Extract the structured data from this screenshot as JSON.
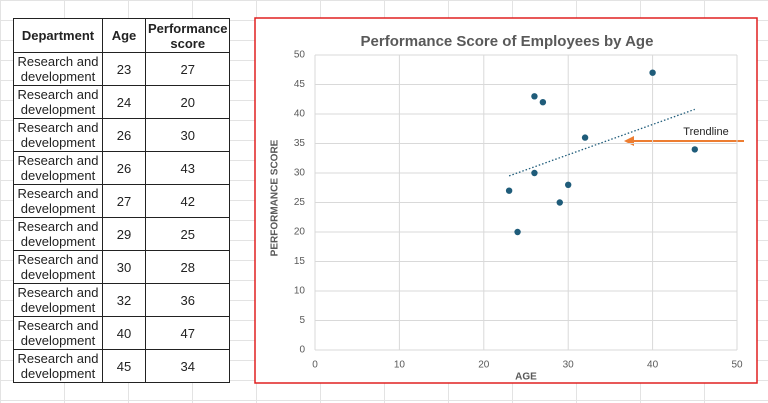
{
  "table": {
    "header": [
      "Department",
      "Age",
      "Performance score"
    ],
    "rows": [
      [
        "Research and development",
        23,
        27
      ],
      [
        "Research and development",
        24,
        20
      ],
      [
        "Research and development",
        26,
        30
      ],
      [
        "Research and development",
        26,
        43
      ],
      [
        "Research and development",
        27,
        42
      ],
      [
        "Research and development",
        29,
        25
      ],
      [
        "Research and development",
        30,
        28
      ],
      [
        "Research and development",
        32,
        36
      ],
      [
        "Research and development",
        40,
        47
      ],
      [
        "Research and development",
        45,
        34
      ]
    ]
  },
  "chart_data": {
    "type": "scatter",
    "title": "Performance Score of Employees by Age",
    "x_label": "AGE",
    "y_label": "PERFORMANCE SCORE",
    "x": [
      23,
      24,
      26,
      26,
      27,
      29,
      30,
      32,
      40,
      45
    ],
    "values": [
      27,
      20,
      30,
      43,
      42,
      25,
      28,
      36,
      47,
      34
    ],
    "color": "#1f5c7a",
    "xlim": [
      0,
      50
    ],
    "xticks": [
      0,
      10,
      20,
      30,
      40,
      50
    ],
    "ylim": [
      0,
      50
    ],
    "yticks": [
      0,
      5,
      10,
      15,
      20,
      25,
      30,
      35,
      40,
      45,
      50
    ],
    "grid": true,
    "trendline": true,
    "annotation": "Trendline"
  }
}
